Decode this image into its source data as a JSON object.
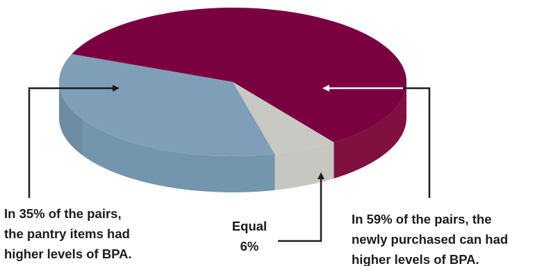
{
  "chart_data": {
    "type": "pie",
    "slices": [
      {
        "key": "newly_purchased",
        "value": 59,
        "color": "#7b0040",
        "side_color": "#7f1040"
      },
      {
        "key": "equal",
        "value": 6,
        "color": "#c9c9c3",
        "side_color": "#c7c7c1"
      },
      {
        "key": "pantry",
        "value": 35,
        "color": "#7f9fb8",
        "side_color": "#7495ae"
      }
    ],
    "annotations": {
      "pantry": [
        "In 35% of the pairs,",
        "the pantry items had",
        "higher levels of BPA."
      ],
      "equal": [
        "Equal",
        "6%"
      ],
      "newly_purchased": [
        "In 59% of the pairs, the",
        "newly purchased can had",
        "higher levels of BPA."
      ]
    }
  }
}
